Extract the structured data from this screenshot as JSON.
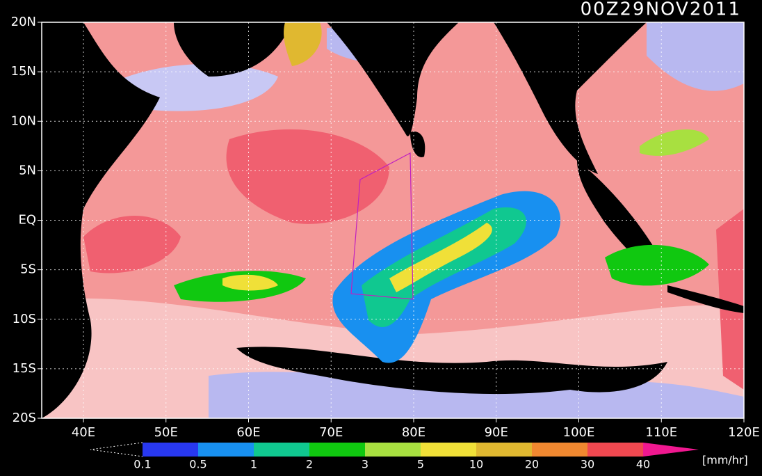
{
  "title": "00Z29NOV2011",
  "lat_labels": [
    "20N",
    "15N",
    "10N",
    "5N",
    "EQ",
    "5S",
    "10S",
    "15S",
    "20S"
  ],
  "lon_labels": [
    "40E",
    "50E",
    "60E",
    "70E",
    "80E",
    "90E",
    "100E",
    "110E",
    "120E"
  ],
  "legend": {
    "levels": [
      "0.1",
      "0.5",
      "1",
      "2",
      "3",
      "5",
      "10",
      "20",
      "30",
      "40"
    ],
    "colors": [
      "#2838f0",
      "#1890f0",
      "#10c890",
      "#10c810",
      "#a8e040",
      "#f0e038",
      "#e0b830",
      "#f08830",
      "#f04850"
    ],
    "over_color": "#f01890",
    "unit": "[mm/hr]"
  }
}
